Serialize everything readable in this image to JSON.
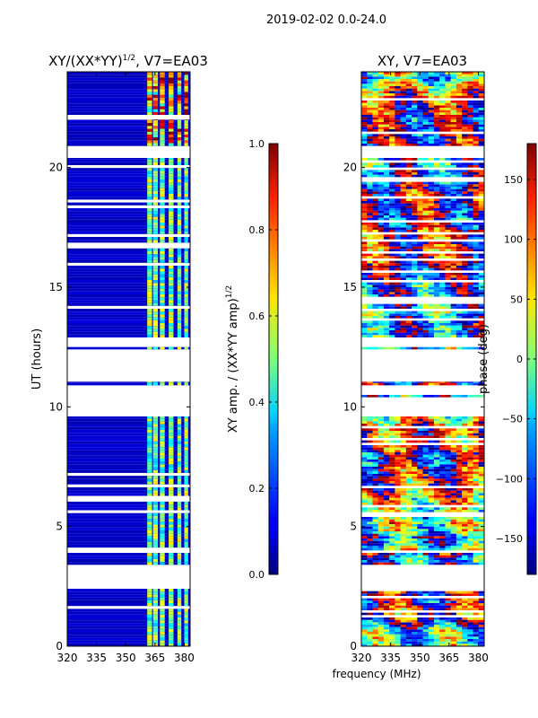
{
  "figure_title": "2019-02-02 0.0-24.0",
  "shared_xlabel": "frequency (MHz)",
  "colors": {
    "background": "#ffffff",
    "no_data": "#ffffff"
  },
  "chart_data": [
    {
      "type": "heatmap",
      "title_main": "XY/(XX*YY)",
      "title_sup": "1/2",
      "title_tail": ", V7=EA03",
      "ylabel": "UT (hours)",
      "xlim": [
        320,
        383
      ],
      "ylim": [
        0,
        24
      ],
      "xticks": [
        320,
        335,
        350,
        365,
        380
      ],
      "yticks": [
        0,
        5,
        10,
        15,
        20
      ],
      "colormap": "jet",
      "colorbar": {
        "label_main": "XY amp. / (XX*YY amp)",
        "label_sup": "1/2",
        "range": [
          0.0,
          1.0
        ],
        "ticks": [
          "0.0",
          "0.2",
          "0.4",
          "0.6",
          "0.8",
          "1.0"
        ]
      },
      "data_bands_hours": [
        [
          0.0,
          2.4
        ],
        [
          3.4,
          3.9
        ],
        [
          4.0,
          9.6
        ],
        [
          10.9,
          11.05
        ],
        [
          12.4,
          12.5
        ],
        [
          12.9,
          20.4
        ],
        [
          20.9,
          22.0
        ],
        [
          22.2,
          24.0
        ]
      ],
      "bright_channels_mhz": [
        [
          361,
          363.5
        ],
        [
          364,
          366.5
        ],
        [
          367.5,
          370
        ],
        [
          372,
          374.5
        ],
        [
          376.5,
          378.5
        ],
        [
          380,
          382
        ]
      ],
      "typical_level_bright": 0.45,
      "typical_level_dim": 0.05
    },
    {
      "type": "heatmap",
      "title_main": "XY, V7=EA03",
      "ylabel": "",
      "xlim": [
        320,
        383
      ],
      "ylim": [
        0,
        24
      ],
      "xticks": [
        320,
        335,
        350,
        365,
        380
      ],
      "yticks": [
        0,
        5,
        10,
        15,
        20
      ],
      "colormap": "jet",
      "colorbar": {
        "label_main": "phase (deg)",
        "range": [
          -180,
          180
        ],
        "ticks": [
          "−150",
          "−100",
          "−50",
          "0",
          "50",
          "100",
          "150"
        ]
      },
      "data_bands_hours": [
        [
          0.0,
          2.4
        ],
        [
          3.4,
          3.9
        ],
        [
          4.0,
          9.6
        ],
        [
          10.4,
          10.5
        ],
        [
          10.9,
          11.05
        ],
        [
          12.4,
          12.5
        ],
        [
          12.9,
          20.4
        ],
        [
          20.9,
          24.0
        ]
      ]
    }
  ]
}
